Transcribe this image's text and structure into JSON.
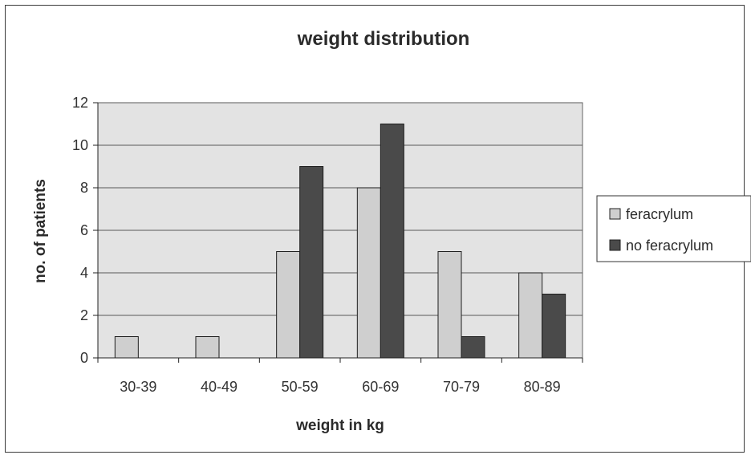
{
  "chart_data": {
    "type": "bar",
    "title": "weight distribution",
    "xlabel": "weight in kg",
    "ylabel": "no. of patients",
    "categories": [
      "30-39",
      "40-49",
      "50-59",
      "60-69",
      "70-79",
      "80-89"
    ],
    "series": [
      {
        "name": "feracrylum",
        "values": [
          1,
          1,
          5,
          8,
          5,
          4
        ],
        "color": "#cfcfcf"
      },
      {
        "name": "no feracrylum",
        "values": [
          0,
          0,
          9,
          11,
          1,
          3
        ],
        "color": "#4a4a4a"
      }
    ],
    "ylim": [
      0,
      12
    ],
    "yticks": [
      0,
      2,
      4,
      6,
      8,
      10,
      12
    ],
    "grid": true,
    "legend_position": "right",
    "plot_background": "#e3e3e3"
  }
}
